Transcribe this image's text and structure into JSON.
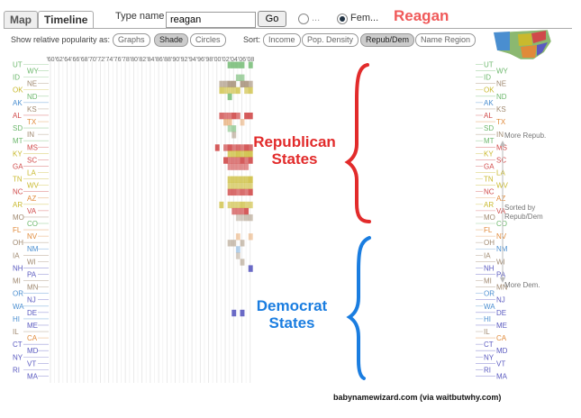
{
  "tabs": [
    "Map",
    "Timeline"
  ],
  "search": {
    "label": "Type name",
    "value": "reagan",
    "go": "Go"
  },
  "gender": {
    "opt1": "...",
    "opt2": "Fem..."
  },
  "annotation_name": "Reagan",
  "show_label": "Show relative popularity as:",
  "show_options": [
    "Graphs",
    "Shade",
    "Circles"
  ],
  "sort_label": "Sort:",
  "sort_options": [
    "Income",
    "Pop. Density",
    "Repub/Dem",
    "Name Region"
  ],
  "side_labels": {
    "more_repub": "More Repub.",
    "sorted_by": "Sorted by\nRepub/Dem",
    "more_dem": "More Dem."
  },
  "annotations": {
    "republican": "Republican\nStates",
    "democrat": "Democrat\nStates"
  },
  "credit": "babynamewizard.com (via waitbutwhy.com)",
  "colors": {
    "republican": "#e22b2b",
    "democrat": "#1a7de0"
  },
  "chart_data": {
    "type": "heatmap",
    "x_tick_labels": [
      "'60",
      "'62",
      "'64",
      "'66",
      "'68",
      "'70",
      "'72",
      "'74",
      "'76",
      "'78",
      "'80",
      "'82",
      "'84",
      "'86",
      "'88",
      "'90",
      "'92",
      "'94",
      "'96",
      "'98",
      "'00",
      "'02",
      "'04",
      "'06",
      "'08"
    ],
    "states": [
      {
        "code": "UT",
        "color": "#6db86d"
      },
      {
        "code": "WY",
        "color": "#6db86d"
      },
      {
        "code": "ID",
        "color": "#6db86d"
      },
      {
        "code": "NE",
        "color": "#a08970"
      },
      {
        "code": "OK",
        "color": "#c9b92e"
      },
      {
        "code": "ND",
        "color": "#6db86d"
      },
      {
        "code": "AK",
        "color": "#4a8ed0"
      },
      {
        "code": "KS",
        "color": "#a08970"
      },
      {
        "code": "AL",
        "color": "#d04a4a"
      },
      {
        "code": "TX",
        "color": "#e08a3a"
      },
      {
        "code": "SD",
        "color": "#6db86d"
      },
      {
        "code": "IN",
        "color": "#a08970"
      },
      {
        "code": "MT",
        "color": "#6db86d"
      },
      {
        "code": "MS",
        "color": "#d04a4a"
      },
      {
        "code": "KY",
        "color": "#c9b92e"
      },
      {
        "code": "SC",
        "color": "#d04a4a"
      },
      {
        "code": "GA",
        "color": "#d04a4a"
      },
      {
        "code": "LA",
        "color": "#c9b92e"
      },
      {
        "code": "TN",
        "color": "#c9b92e"
      },
      {
        "code": "WV",
        "color": "#c9b92e"
      },
      {
        "code": "NC",
        "color": "#d04a4a"
      },
      {
        "code": "AZ",
        "color": "#e08a3a"
      },
      {
        "code": "AR",
        "color": "#c9b92e"
      },
      {
        "code": "VA",
        "color": "#d04a4a"
      },
      {
        "code": "MO",
        "color": "#a08970"
      },
      {
        "code": "CO",
        "color": "#6db86d"
      },
      {
        "code": "FL",
        "color": "#e08a3a"
      },
      {
        "code": "NV",
        "color": "#e08a3a"
      },
      {
        "code": "OH",
        "color": "#a08970"
      },
      {
        "code": "NM",
        "color": "#4a8ed0"
      },
      {
        "code": "IA",
        "color": "#a08970"
      },
      {
        "code": "WI",
        "color": "#a08970"
      },
      {
        "code": "NH",
        "color": "#5a5ac0"
      },
      {
        "code": "PA",
        "color": "#5a5ac0"
      },
      {
        "code": "MI",
        "color": "#a08970"
      },
      {
        "code": "MN",
        "color": "#a08970"
      },
      {
        "code": "OR",
        "color": "#4a8ed0"
      },
      {
        "code": "NJ",
        "color": "#5a5ac0"
      },
      {
        "code": "WA",
        "color": "#4a8ed0"
      },
      {
        "code": "DE",
        "color": "#5a5ac0"
      },
      {
        "code": "HI",
        "color": "#4a8ed0"
      },
      {
        "code": "ME",
        "color": "#5a5ac0"
      },
      {
        "code": "IL",
        "color": "#a08970"
      },
      {
        "code": "CA",
        "color": "#e08a3a"
      },
      {
        "code": "CT",
        "color": "#5a5ac0"
      },
      {
        "code": "MD",
        "color": "#5a5ac0"
      },
      {
        "code": "NY",
        "color": "#5a5ac0"
      },
      {
        "code": "VT",
        "color": "#5a5ac0"
      },
      {
        "code": "RI",
        "color": "#5a5ac0"
      },
      {
        "code": "MA",
        "color": "#5a5ac0"
      }
    ],
    "cells": [
      {
        "state": "UT",
        "year": 2003,
        "v": 0.8
      },
      {
        "state": "UT",
        "year": 2004,
        "v": 0.8
      },
      {
        "state": "UT",
        "year": 2005,
        "v": 0.8
      },
      {
        "state": "UT",
        "year": 2006,
        "v": 0.8
      },
      {
        "state": "UT",
        "year": 2008,
        "v": 0.8
      },
      {
        "state": "ID",
        "year": 2005,
        "v": 0.6
      },
      {
        "state": "ID",
        "year": 2006,
        "v": 0.6
      },
      {
        "state": "NE",
        "year": 2001,
        "v": 0.6
      },
      {
        "state": "NE",
        "year": 2002,
        "v": 0.6
      },
      {
        "state": "NE",
        "year": 2003,
        "v": 0.8
      },
      {
        "state": "NE",
        "year": 2004,
        "v": 0.8
      },
      {
        "state": "NE",
        "year": 2006,
        "v": 0.8
      },
      {
        "state": "NE",
        "year": 2007,
        "v": 0.8
      },
      {
        "state": "NE",
        "year": 2008,
        "v": 0.6
      },
      {
        "state": "OK",
        "year": 2001,
        "v": 0.7
      },
      {
        "state": "OK",
        "year": 2002,
        "v": 0.6
      },
      {
        "state": "OK",
        "year": 2003,
        "v": 0.6
      },
      {
        "state": "OK",
        "year": 2004,
        "v": 0.6
      },
      {
        "state": "OK",
        "year": 2005,
        "v": 0.7
      },
      {
        "state": "OK",
        "year": 2007,
        "v": 0.6
      },
      {
        "state": "OK",
        "year": 2008,
        "v": 0.7
      },
      {
        "state": "ND",
        "year": 2003,
        "v": 0.8
      },
      {
        "state": "AL",
        "year": 2001,
        "v": 0.8
      },
      {
        "state": "AL",
        "year": 2002,
        "v": 0.7
      },
      {
        "state": "AL",
        "year": 2003,
        "v": 0.7
      },
      {
        "state": "AL",
        "year": 2004,
        "v": 0.9
      },
      {
        "state": "AL",
        "year": 2005,
        "v": 0.7
      },
      {
        "state": "AL",
        "year": 2007,
        "v": 0.9
      },
      {
        "state": "AL",
        "year": 2008,
        "v": 0.9
      },
      {
        "state": "TX",
        "year": 2002,
        "v": 0.5
      },
      {
        "state": "TX",
        "year": 2003,
        "v": 0.5
      },
      {
        "state": "TX",
        "year": 2006,
        "v": 0.4
      },
      {
        "state": "SD",
        "year": 2003,
        "v": 0.5
      },
      {
        "state": "SD",
        "year": 2004,
        "v": 0.6
      },
      {
        "state": "IN",
        "year": 2004,
        "v": 0.5
      },
      {
        "state": "MS",
        "year": 2000,
        "v": 0.9
      },
      {
        "state": "MS",
        "year": 2002,
        "v": 0.7
      },
      {
        "state": "MS",
        "year": 2003,
        "v": 0.9
      },
      {
        "state": "MS",
        "year": 2004,
        "v": 0.7
      },
      {
        "state": "MS",
        "year": 2005,
        "v": 0.8
      },
      {
        "state": "MS",
        "year": 2006,
        "v": 0.7
      },
      {
        "state": "MS",
        "year": 2007,
        "v": 0.9
      },
      {
        "state": "MS",
        "year": 2008,
        "v": 0.8
      },
      {
        "state": "KY",
        "year": 2003,
        "v": 0.7
      },
      {
        "state": "KY",
        "year": 2004,
        "v": 0.7
      },
      {
        "state": "KY",
        "year": 2005,
        "v": 0.8
      },
      {
        "state": "KY",
        "year": 2006,
        "v": 0.7
      },
      {
        "state": "KY",
        "year": 2007,
        "v": 0.8
      },
      {
        "state": "KY",
        "year": 2008,
        "v": 0.8
      },
      {
        "state": "SC",
        "year": 2002,
        "v": 0.9
      },
      {
        "state": "SC",
        "year": 2003,
        "v": 0.7
      },
      {
        "state": "SC",
        "year": 2004,
        "v": 0.7
      },
      {
        "state": "SC",
        "year": 2005,
        "v": 0.7
      },
      {
        "state": "SC",
        "year": 2006,
        "v": 0.9
      },
      {
        "state": "SC",
        "year": 2007,
        "v": 0.7
      },
      {
        "state": "SC",
        "year": 2008,
        "v": 0.9
      },
      {
        "state": "GA",
        "year": 2003,
        "v": 0.6
      },
      {
        "state": "GA",
        "year": 2004,
        "v": 0.6
      },
      {
        "state": "GA",
        "year": 2005,
        "v": 0.6
      },
      {
        "state": "GA",
        "year": 2006,
        "v": 0.6
      },
      {
        "state": "GA",
        "year": 2007,
        "v": 0.6
      },
      {
        "state": "TN",
        "year": 2003,
        "v": 0.7
      },
      {
        "state": "TN",
        "year": 2004,
        "v": 0.7
      },
      {
        "state": "TN",
        "year": 2005,
        "v": 0.7
      },
      {
        "state": "TN",
        "year": 2006,
        "v": 0.7
      },
      {
        "state": "TN",
        "year": 2007,
        "v": 0.7
      },
      {
        "state": "TN",
        "year": 2008,
        "v": 0.8
      },
      {
        "state": "WV",
        "year": 2003,
        "v": 0.6
      },
      {
        "state": "WV",
        "year": 2004,
        "v": 0.6
      },
      {
        "state": "WV",
        "year": 2005,
        "v": 0.6
      },
      {
        "state": "WV",
        "year": 2006,
        "v": 0.6
      },
      {
        "state": "WV",
        "year": 2007,
        "v": 0.6
      },
      {
        "state": "WV",
        "year": 2008,
        "v": 0.6
      },
      {
        "state": "NC",
        "year": 2003,
        "v": 0.8
      },
      {
        "state": "NC",
        "year": 2004,
        "v": 0.8
      },
      {
        "state": "NC",
        "year": 2005,
        "v": 0.7
      },
      {
        "state": "NC",
        "year": 2006,
        "v": 0.8
      },
      {
        "state": "NC",
        "year": 2007,
        "v": 0.7
      },
      {
        "state": "NC",
        "year": 2008,
        "v": 0.9
      },
      {
        "state": "AR",
        "year": 2001,
        "v": 0.7
      },
      {
        "state": "AR",
        "year": 2003,
        "v": 0.6
      },
      {
        "state": "AR",
        "year": 2004,
        "v": 0.6
      },
      {
        "state": "AR",
        "year": 2005,
        "v": 0.6
      },
      {
        "state": "AR",
        "year": 2006,
        "v": 0.7
      },
      {
        "state": "AR",
        "year": 2007,
        "v": 0.6
      },
      {
        "state": "AR",
        "year": 2008,
        "v": 0.6
      },
      {
        "state": "VA",
        "year": 2004,
        "v": 0.7
      },
      {
        "state": "VA",
        "year": 2005,
        "v": 0.7
      },
      {
        "state": "VA",
        "year": 2006,
        "v": 0.7
      },
      {
        "state": "VA",
        "year": 2007,
        "v": 0.9
      },
      {
        "state": "MO",
        "year": 2005,
        "v": 0.4
      },
      {
        "state": "MO",
        "year": 2006,
        "v": 0.4
      },
      {
        "state": "MO",
        "year": 2007,
        "v": 0.5
      },
      {
        "state": "MO",
        "year": 2008,
        "v": 0.5
      },
      {
        "state": "NV",
        "year": 2005,
        "v": 0.4
      },
      {
        "state": "NV",
        "year": 2008,
        "v": 0.4
      },
      {
        "state": "OH",
        "year": 2003,
        "v": 0.5
      },
      {
        "state": "OH",
        "year": 2004,
        "v": 0.5
      },
      {
        "state": "OH",
        "year": 2006,
        "v": 0.5
      },
      {
        "state": "NM",
        "year": 2005,
        "v": 0.4
      },
      {
        "state": "IA",
        "year": 2005,
        "v": 0.4
      },
      {
        "state": "WI",
        "year": 2006,
        "v": 0.5
      },
      {
        "state": "NH",
        "year": 2008,
        "v": 0.9
      },
      {
        "state": "DE",
        "year": 2004,
        "v": 0.9
      },
      {
        "state": "DE",
        "year": 2006,
        "v": 0.9
      }
    ]
  }
}
